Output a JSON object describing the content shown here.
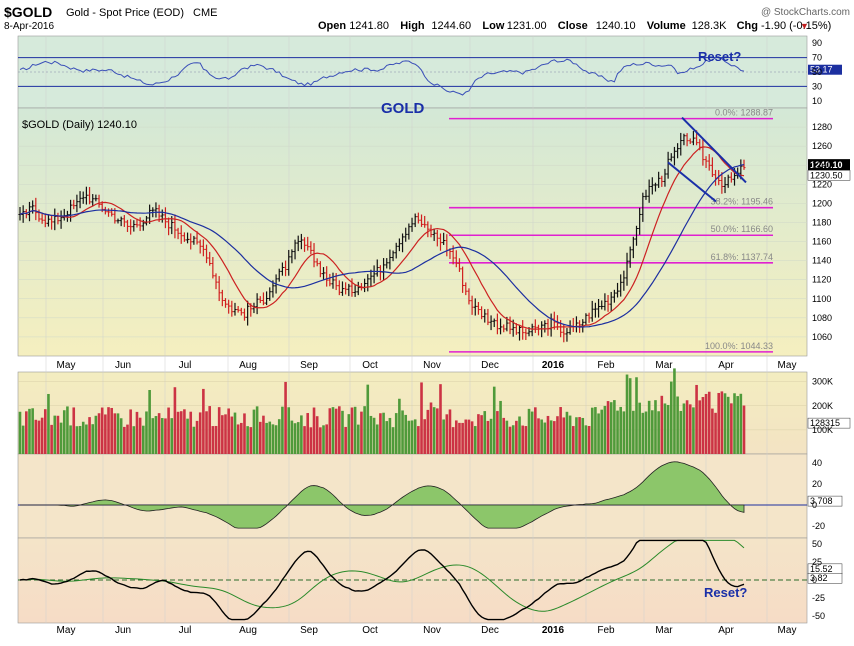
{
  "header": {
    "symbol": "$GOLD",
    "name": "Gold - Spot Price (EOD)",
    "exchange": "CME",
    "date": "8-Apr-2016",
    "watermark": "@ StockCharts.com",
    "quote": [
      {
        "label": "Open",
        "value": "1241.80"
      },
      {
        "label": "High",
        "value": "1244.60"
      },
      {
        "label": "Low",
        "value": "1231.00"
      },
      {
        "label": "Close",
        "value": "1240.10"
      },
      {
        "label": "Volume",
        "value": "128.3K"
      },
      {
        "label": "Chg",
        "value": "-1.90 (-0.15%)"
      }
    ]
  },
  "annotations": {
    "reset_top": "Reset?",
    "reset_bottom": "Reset?",
    "gold_label": "GOLD"
  },
  "colors": {
    "panel_bg_top": "#d9ead9",
    "panel_bg_bottom": "#f2efc4",
    "lower_bg": "#f6e2c8",
    "up_bar": "#111111",
    "down_bar": "#d01f1f",
    "ma_fast": "#cc2222",
    "ma_slow": "#1c2fa0",
    "fib_line": "#e020d0",
    "annot_blue": "#1a2fa8",
    "vol_up": "#4f9a3a",
    "vol_down": "#cc3344"
  },
  "chart_data": [
    {
      "type": "line",
      "panel": "rsi",
      "yticks": [
        10,
        30,
        50,
        70,
        90
      ],
      "last_value": "53.17",
      "ylim": [
        0,
        100
      ]
    },
    {
      "type": "candlestick",
      "panel": "price",
      "legend": "$GOLD (Daily) 1240.10",
      "yticks": [
        1060,
        1080,
        1100,
        1120,
        1140,
        1160,
        1180,
        1200,
        1220,
        1240,
        1260,
        1280
      ],
      "ylim": [
        1040,
        1300
      ],
      "last_labels": [
        "1240.10",
        "1230.50"
      ],
      "x_labels": [
        "May",
        "Jun",
        "Jul",
        "Aug",
        "Sep",
        "Oct",
        "Nov",
        "Dec",
        "2016",
        "Feb",
        "Mar",
        "Apr",
        "May"
      ],
      "close_series": [
        1185,
        1190,
        1195,
        1188,
        1183,
        1180,
        1185,
        1190,
        1195,
        1200,
        1210,
        1205,
        1200,
        1195,
        1190,
        1185,
        1180,
        1175,
        1178,
        1182,
        1188,
        1192,
        1186,
        1180,
        1175,
        1170,
        1165,
        1160,
        1155,
        1150,
        1130,
        1110,
        1095,
        1090,
        1087,
        1085,
        1090,
        1095,
        1100,
        1110,
        1120,
        1130,
        1140,
        1155,
        1160,
        1150,
        1140,
        1130,
        1120,
        1115,
        1110,
        1108,
        1110,
        1115,
        1120,
        1125,
        1130,
        1140,
        1150,
        1160,
        1170,
        1180,
        1185,
        1175,
        1170,
        1165,
        1160,
        1150,
        1140,
        1120,
        1100,
        1090,
        1085,
        1080,
        1075,
        1072,
        1070,
        1068,
        1065,
        1065,
        1066,
        1070,
        1072,
        1075,
        1070,
        1065,
        1068,
        1072,
        1078,
        1085,
        1090,
        1095,
        1100,
        1110,
        1120,
        1140,
        1170,
        1200,
        1215,
        1220,
        1225,
        1240,
        1250,
        1260,
        1270,
        1265,
        1255,
        1245,
        1235,
        1225,
        1220,
        1225,
        1230,
        1240
      ],
      "fib_levels": [
        {
          "label": "0.0%: 1288.87",
          "value": 1288.87
        },
        {
          "label": "38.2%: 1195.46",
          "value": 1195.46
        },
        {
          "label": "50.0%: 1166.60",
          "value": 1166.6
        },
        {
          "label": "61.8%: 1137.74",
          "value": 1137.74
        },
        {
          "label": "100.0%: 1044.33",
          "value": 1044.33
        }
      ]
    },
    {
      "type": "bar",
      "panel": "volume",
      "yticks": [
        "300K",
        "200K",
        "100K"
      ],
      "last_value": "128315"
    },
    {
      "type": "area",
      "panel": "oscillator",
      "yticks": [
        40,
        20,
        0,
        -20
      ],
      "last_value": "3.708"
    },
    {
      "type": "line",
      "panel": "macd",
      "yticks": [
        50,
        25,
        0,
        -25,
        -50
      ],
      "last_labels": [
        "15.52",
        "3.82"
      ]
    }
  ]
}
